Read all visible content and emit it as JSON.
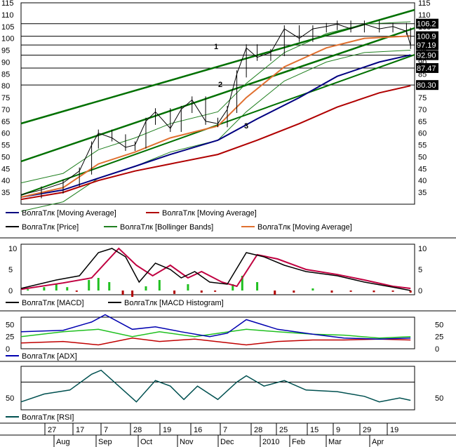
{
  "colors": {
    "price": "#000000",
    "ma_short": "#e07030",
    "ma_mid": "#000080",
    "ma_long": "#b00000",
    "bollinger": "#208020",
    "channel": "#007000",
    "macd": "#000000",
    "macd_signal": "#c00040",
    "hist_pos": "#20c020",
    "hist_neg": "#b00000",
    "adx": "#0000b0",
    "di_plus": "#20c020",
    "di_minus": "#c00000",
    "rsi": "#005050"
  },
  "price_panel": {
    "axis_ticks": [
      "35",
      "40",
      "45",
      "50",
      "55",
      "60",
      "65",
      "70",
      "75",
      "80",
      "85",
      "90",
      "95",
      "100",
      "105",
      "110",
      "115"
    ],
    "level_labels": [
      "106.2",
      "100.9",
      "97.19",
      "92.90",
      "87.47",
      "80.30"
    ],
    "channel_markers": [
      "1",
      "2",
      "3"
    ],
    "legend": [
      {
        "label": "ВолгаТлк [Moving Average]",
        "color": "#000080",
        "icon": "line-icon"
      },
      {
        "label": "ВолгаТлк [Moving Average]",
        "color": "#b00000",
        "icon": "line-icon"
      },
      {
        "label": "ВолгаТлк [Price]",
        "color": "#000000",
        "icon": "line-icon"
      },
      {
        "label": "ВолгаТлк [Bollinger Bands]",
        "color": "#208020",
        "icon": "line-icon"
      },
      {
        "label": "ВолгаТлк [Moving Average]",
        "color": "#e07030",
        "icon": "line-icon"
      }
    ]
  },
  "macd_panel": {
    "axis_ticks": [
      "0",
      "5",
      "10"
    ],
    "legend": [
      {
        "label": "ВолгаТлк [MACD]",
        "color": "#000000",
        "icon": "line-icon"
      },
      {
        "label": "ВолгаТлк [MACD Histogram]",
        "color": "#000000",
        "icon": "line-icon"
      }
    ]
  },
  "adx_panel": {
    "axis_ticks": [
      "0",
      "25",
      "50"
    ],
    "legend": [
      {
        "label": "ВолгаТлк [ADX]",
        "color": "#0000b0",
        "icon": "line-icon"
      }
    ]
  },
  "rsi_panel": {
    "axis_ticks": [
      "50"
    ],
    "legend": [
      {
        "label": "ВолгаТлк [RSI]",
        "color": "#005050",
        "icon": "line-icon"
      }
    ]
  },
  "date_axis": {
    "day_ticks": [
      "27",
      "17",
      "7",
      "28",
      "19",
      "16",
      "7",
      "28",
      "25",
      "15",
      "9",
      "29",
      "19"
    ],
    "month_ticks": [
      "Aug",
      "Sep",
      "Oct",
      "Nov",
      "Dec",
      "2010",
      "Feb",
      "Mar",
      "Apr"
    ]
  },
  "chart_data": {
    "type": "line",
    "x_range": [
      "2009-07-15",
      "2010-05-01"
    ],
    "price": {
      "ylim": [
        30,
        115
      ],
      "channel_levels": [
        106.2,
        100.9,
        97.19,
        92.9,
        87.47,
        80.3
      ],
      "close": [
        [
          "2009-07-15",
          34
        ],
        [
          "2009-07-30",
          36
        ],
        [
          "2009-08-15",
          39
        ],
        [
          "2009-08-27",
          44
        ],
        [
          "2009-09-05",
          55
        ],
        [
          "2009-09-10",
          60
        ],
        [
          "2009-09-20",
          58
        ],
        [
          "2009-09-30",
          54
        ],
        [
          "2009-10-07",
          55
        ],
        [
          "2009-10-15",
          65
        ],
        [
          "2009-10-22",
          69
        ],
        [
          "2009-11-02",
          62
        ],
        [
          "2009-11-10",
          70
        ],
        [
          "2009-11-18",
          74
        ],
        [
          "2009-11-28",
          65
        ],
        [
          "2009-12-07",
          64
        ],
        [
          "2009-12-14",
          70
        ],
        [
          "2009-12-21",
          85
        ],
        [
          "2009-12-28",
          96
        ],
        [
          "2010-01-05",
          92
        ],
        [
          "2010-01-15",
          94
        ],
        [
          "2010-01-25",
          104
        ],
        [
          "2010-02-05",
          100
        ],
        [
          "2010-02-15",
          104
        ],
        [
          "2010-02-25",
          105
        ],
        [
          "2010-03-05",
          106
        ],
        [
          "2010-03-15",
          104
        ],
        [
          "2010-03-25",
          106
        ],
        [
          "2010-04-05",
          104
        ],
        [
          "2010-04-15",
          105
        ],
        [
          "2010-04-25",
          103
        ],
        [
          "2010-04-28",
          97
        ]
      ],
      "ma_short": [
        [
          "2009-07-15",
          33
        ],
        [
          "2009-08-15",
          37
        ],
        [
          "2009-09-10",
          47
        ],
        [
          "2009-10-07",
          52
        ],
        [
          "2009-11-02",
          58
        ],
        [
          "2009-12-07",
          63
        ],
        [
          "2009-12-28",
          75
        ],
        [
          "2010-01-25",
          88
        ],
        [
          "2010-02-25",
          96
        ],
        [
          "2010-03-25",
          100
        ],
        [
          "2010-04-28",
          101
        ]
      ],
      "ma_mid": [
        [
          "2009-07-15",
          33
        ],
        [
          "2009-08-15",
          36
        ],
        [
          "2009-09-10",
          41
        ],
        [
          "2009-10-07",
          46
        ],
        [
          "2009-11-02",
          51
        ],
        [
          "2009-12-07",
          57
        ],
        [
          "2010-01-05",
          66
        ],
        [
          "2010-02-05",
          75
        ],
        [
          "2010-03-05",
          84
        ],
        [
          "2010-04-05",
          90
        ],
        [
          "2010-04-28",
          93
        ]
      ],
      "ma_long": [
        [
          "2009-07-15",
          32
        ],
        [
          "2009-08-15",
          35
        ],
        [
          "2009-09-10",
          40
        ],
        [
          "2009-10-07",
          44
        ],
        [
          "2009-11-02",
          47
        ],
        [
          "2009-12-07",
          51
        ],
        [
          "2010-01-05",
          57
        ],
        [
          "2010-02-05",
          64
        ],
        [
          "2010-03-05",
          71
        ],
        [
          "2010-04-05",
          77
        ],
        [
          "2010-04-28",
          80
        ]
      ]
    },
    "macd": {
      "ylim": [
        -1,
        11
      ],
      "macd": [
        [
          "2009-07-15",
          0.5
        ],
        [
          "2009-08-10",
          2.5
        ],
        [
          "2009-08-27",
          3.5
        ],
        [
          "2009-09-10",
          9
        ],
        [
          "2009-09-20",
          10
        ],
        [
          "2009-09-30",
          8
        ],
        [
          "2009-10-10",
          2
        ],
        [
          "2009-10-22",
          6.5
        ],
        [
          "2009-11-02",
          5
        ],
        [
          "2009-11-10",
          3
        ],
        [
          "2009-11-20",
          4.5
        ],
        [
          "2009-12-01",
          2
        ],
        [
          "2009-12-14",
          1.5
        ],
        [
          "2009-12-28",
          9
        ],
        [
          "2010-01-10",
          8
        ],
        [
          "2010-01-25",
          6
        ],
        [
          "2010-02-10",
          4.5
        ],
        [
          "2010-03-05",
          3.5
        ],
        [
          "2010-03-25",
          2
        ],
        [
          "2010-04-15",
          0.8
        ],
        [
          "2010-04-28",
          0
        ]
      ],
      "signal": [
        [
          "2009-07-15",
          0.3
        ],
        [
          "2009-08-15",
          1.8
        ],
        [
          "2009-09-05",
          3
        ],
        [
          "2009-09-25",
          10
        ],
        [
          "2009-10-08",
          6
        ],
        [
          "2009-10-20",
          3.5
        ],
        [
          "2009-11-02",
          6
        ],
        [
          "2009-11-15",
          3
        ],
        [
          "2009-11-25",
          4.5
        ],
        [
          "2009-12-10",
          2
        ],
        [
          "2009-12-21",
          1
        ],
        [
          "2010-01-05",
          8.5
        ],
        [
          "2010-01-20",
          7.5
        ],
        [
          "2010-02-10",
          5
        ],
        [
          "2010-03-05",
          3.8
        ],
        [
          "2010-03-25",
          2.5
        ],
        [
          "2010-04-15",
          1
        ],
        [
          "2010-04-28",
          0.5
        ]
      ],
      "histogram": [
        [
          "2009-07-20",
          0.3
        ],
        [
          "2009-08-01",
          0.8
        ],
        [
          "2009-08-10",
          1.5
        ],
        [
          "2009-08-18",
          0.8
        ],
        [
          "2009-08-25",
          -0.3
        ],
        [
          "2009-09-03",
          2.5
        ],
        [
          "2009-09-10",
          3
        ],
        [
          "2009-09-18",
          2
        ],
        [
          "2009-09-28",
          -1
        ],
        [
          "2009-10-05",
          -1.5
        ],
        [
          "2009-10-15",
          1
        ],
        [
          "2009-10-25",
          2.5
        ],
        [
          "2009-11-05",
          -0.8
        ],
        [
          "2009-11-15",
          1.5
        ],
        [
          "2009-11-25",
          -0.5
        ],
        [
          "2009-12-05",
          -0.3
        ],
        [
          "2009-12-18",
          1.5
        ],
        [
          "2009-12-25",
          3.5
        ],
        [
          "2010-01-05",
          2
        ],
        [
          "2010-01-18",
          -1
        ],
        [
          "2010-02-01",
          -0.5
        ],
        [
          "2010-02-15",
          0.5
        ],
        [
          "2010-03-01",
          -0.5
        ],
        [
          "2010-03-15",
          -0.3
        ],
        [
          "2010-04-01",
          -0.4
        ],
        [
          "2010-04-15",
          -0.3
        ],
        [
          "2010-04-28",
          -0.5
        ]
      ]
    },
    "adx": {
      "ylim": [
        0,
        65
      ],
      "adx": [
        [
          "2009-07-15",
          35
        ],
        [
          "2009-08-15",
          38
        ],
        [
          "2009-09-05",
          55
        ],
        [
          "2009-09-15",
          70
        ],
        [
          "2009-10-05",
          40
        ],
        [
          "2009-10-22",
          45
        ],
        [
          "2009-11-10",
          35
        ],
        [
          "2009-12-01",
          25
        ],
        [
          "2009-12-14",
          32
        ],
        [
          "2009-12-28",
          60
        ],
        [
          "2010-01-20",
          40
        ],
        [
          "2010-02-15",
          30
        ],
        [
          "2010-03-10",
          22
        ],
        [
          "2010-04-05",
          20
        ],
        [
          "2010-04-28",
          22
        ]
      ],
      "di_plus": [
        [
          "2009-07-15",
          25
        ],
        [
          "2009-08-15",
          35
        ],
        [
          "2009-09-10",
          40
        ],
        [
          "2009-10-05",
          25
        ],
        [
          "2009-10-25",
          35
        ],
        [
          "2009-11-20",
          25
        ],
        [
          "2009-12-28",
          40
        ],
        [
          "2010-01-20",
          35
        ],
        [
          "2010-02-15",
          30
        ],
        [
          "2010-03-10",
          28
        ],
        [
          "2010-04-05",
          22
        ],
        [
          "2010-04-28",
          25
        ]
      ],
      "di_minus": [
        [
          "2009-07-15",
          12
        ],
        [
          "2009-08-15",
          15
        ],
        [
          "2009-09-10",
          8
        ],
        [
          "2009-10-05",
          22
        ],
        [
          "2009-10-25",
          15
        ],
        [
          "2009-11-20",
          20
        ],
        [
          "2009-12-28",
          8
        ],
        [
          "2010-01-20",
          15
        ],
        [
          "2010-02-15",
          18
        ],
        [
          "2010-03-10",
          18
        ],
        [
          "2010-04-05",
          20
        ],
        [
          "2010-04-28",
          18
        ]
      ]
    },
    "rsi": {
      "ylim": [
        35,
        90
      ],
      "rsi": [
        [
          "2009-07-15",
          45
        ],
        [
          "2009-08-01",
          55
        ],
        [
          "2009-08-20",
          60
        ],
        [
          "2009-09-05",
          80
        ],
        [
          "2009-09-12",
          85
        ],
        [
          "2009-09-25",
          65
        ],
        [
          "2009-10-08",
          45
        ],
        [
          "2009-10-22",
          72
        ],
        [
          "2009-11-02",
          65
        ],
        [
          "2009-11-12",
          48
        ],
        [
          "2009-11-22",
          65
        ],
        [
          "2009-12-07",
          48
        ],
        [
          "2009-12-21",
          70
        ],
        [
          "2009-12-28",
          78
        ],
        [
          "2010-01-10",
          65
        ],
        [
          "2010-01-25",
          72
        ],
        [
          "2010-02-10",
          60
        ],
        [
          "2010-03-05",
          58
        ],
        [
          "2010-03-25",
          52
        ],
        [
          "2010-04-05",
          45
        ],
        [
          "2010-04-20",
          50
        ],
        [
          "2010-04-28",
          47
        ]
      ]
    }
  }
}
